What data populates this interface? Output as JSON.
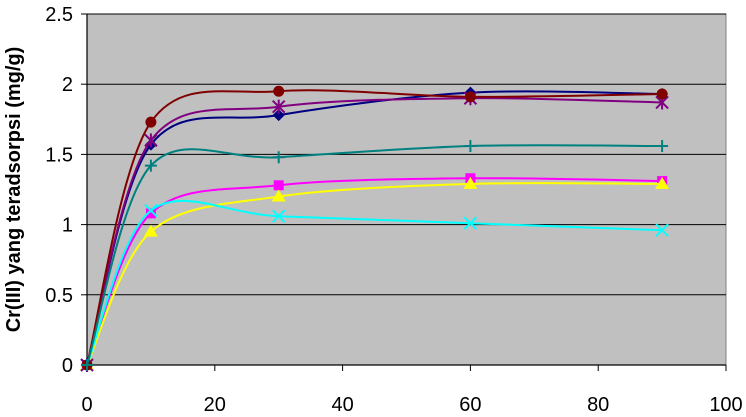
{
  "chart_data": {
    "type": "line",
    "title": "",
    "xlabel": "",
    "ylabel": "Cr(III) yang teradsorpsi (mg/g)",
    "xlim": [
      0,
      100
    ],
    "ylim": [
      0,
      2.5
    ],
    "x_ticks": [
      "0",
      "20",
      "40",
      "60",
      "80",
      "100"
    ],
    "y_ticks": [
      "0",
      "0.5",
      "1",
      "1.5",
      "2",
      "2.5"
    ],
    "grid": "horizontal",
    "legend": "none",
    "plot_background": "#c0c0c0",
    "series": [
      {
        "color": "#000080",
        "marker": "diamond",
        "x": [
          0,
          10,
          30,
          60,
          90
        ],
        "y": [
          0,
          1.57,
          1.78,
          1.94,
          1.93
        ]
      },
      {
        "color": "#ff00ff",
        "marker": "square",
        "x": [
          0,
          10,
          30,
          60,
          90
        ],
        "y": [
          0,
          1.08,
          1.28,
          1.33,
          1.31
        ]
      },
      {
        "color": "#ffff00",
        "marker": "triangle",
        "x": [
          0,
          10,
          30,
          60,
          90
        ],
        "y": [
          0,
          0.95,
          1.2,
          1.29,
          1.29
        ]
      },
      {
        "color": "#00ffff",
        "marker": "x",
        "x": [
          0,
          10,
          30,
          60,
          90
        ],
        "y": [
          0,
          1.1,
          1.06,
          1.01,
          0.96
        ]
      },
      {
        "color": "#800080",
        "marker": "star",
        "x": [
          0,
          10,
          30,
          60,
          90
        ],
        "y": [
          0,
          1.6,
          1.84,
          1.9,
          1.87
        ]
      },
      {
        "color": "#800000",
        "marker": "circle",
        "x": [
          0,
          10,
          30,
          60,
          90
        ],
        "y": [
          0,
          1.73,
          1.95,
          1.91,
          1.93
        ]
      },
      {
        "color": "#008080",
        "marker": "plus",
        "x": [
          0,
          10,
          30,
          60,
          90
        ],
        "y": [
          0,
          1.42,
          1.48,
          1.56,
          1.56
        ]
      }
    ]
  }
}
